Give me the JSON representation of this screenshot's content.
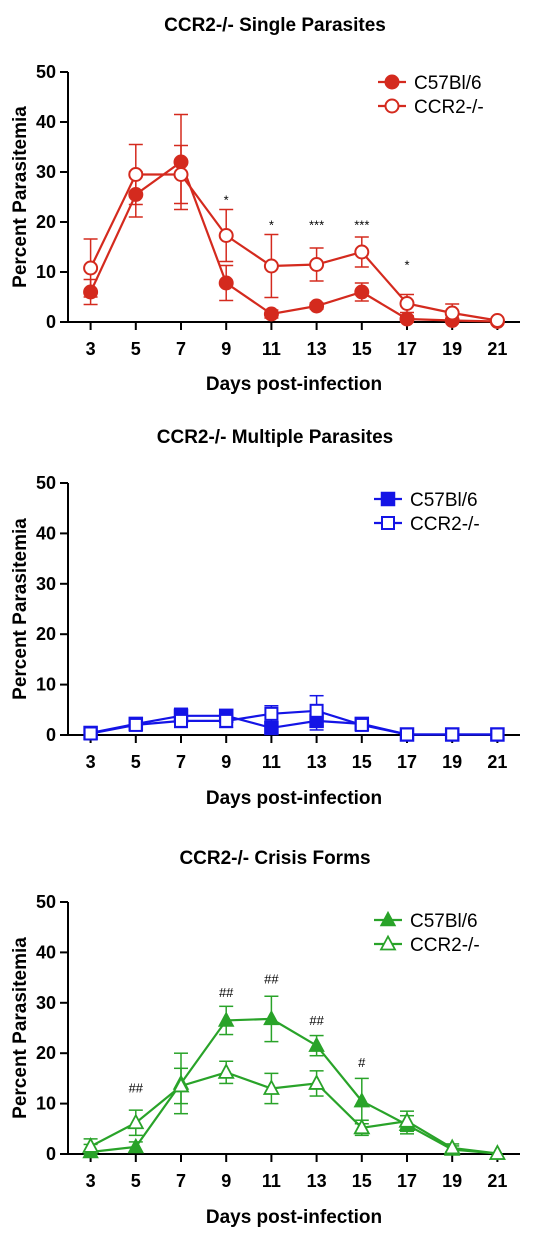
{
  "chart_data": [
    {
      "type": "line",
      "title": "CCR2-/- Single Parasites",
      "xlabel": "Days post-infection",
      "ylabel": "Percent Parasitemia",
      "x": [
        3,
        5,
        7,
        9,
        11,
        13,
        15,
        17,
        19,
        21
      ],
      "xlim": [
        2,
        22
      ],
      "ylim": [
        0,
        50
      ],
      "yticks": [
        0,
        10,
        20,
        30,
        40,
        50
      ],
      "legend_position": "top-right",
      "color": "#d42a1e",
      "series": [
        {
          "name": "C57Bl/6",
          "marker": "filled-circle",
          "values": [
            6,
            25.5,
            32,
            7.8,
            1.6,
            3.2,
            6,
            0.6,
            0.3,
            0.1
          ],
          "errors": [
            2.5,
            4.5,
            9.5,
            3.5,
            0.8,
            0.6,
            1.8,
            0.6,
            0.3,
            0.1
          ]
        },
        {
          "name": "CCR2-/-",
          "marker": "open-circle",
          "values": [
            10.8,
            29.5,
            29.5,
            17.3,
            11.2,
            11.5,
            14,
            3.7,
            1.8,
            0.3
          ],
          "errors": [
            5.8,
            6.0,
            5.8,
            5.2,
            6.3,
            3.3,
            3.0,
            1.8,
            1.8,
            0.3
          ]
        }
      ],
      "annotations": [
        {
          "x": 9,
          "y": 23.5,
          "text": "*"
        },
        {
          "x": 11,
          "y": 18.5,
          "text": "*"
        },
        {
          "x": 13,
          "y": 18.5,
          "text": "***"
        },
        {
          "x": 15,
          "y": 18.5,
          "text": "***"
        },
        {
          "x": 17,
          "y": 10.5,
          "text": "*"
        }
      ]
    },
    {
      "type": "line",
      "title": "CCR2-/- Multiple  Parasites",
      "xlabel": "Days post-infection",
      "ylabel": "Percent Parasitemia",
      "x": [
        3,
        5,
        7,
        9,
        11,
        13,
        15,
        17,
        19,
        21
      ],
      "xlim": [
        2,
        22
      ],
      "ylim": [
        0,
        50
      ],
      "yticks": [
        0,
        10,
        20,
        30,
        40,
        50
      ],
      "legend_position": "top-right",
      "color": "#1414e6",
      "series": [
        {
          "name": "C57Bl/6",
          "marker": "filled-square",
          "values": [
            0.4,
            2.2,
            3.8,
            3.8,
            1.4,
            2.8,
            2.2,
            0.1,
            0.1,
            0.1
          ],
          "errors": [
            0.3,
            0.5,
            1.5,
            1.2,
            0.8,
            1.8,
            0.6,
            0.1,
            0.1,
            0.1
          ]
        },
        {
          "name": "CCR2-/-",
          "marker": "open-square",
          "values": [
            0.3,
            2.0,
            2.8,
            2.8,
            4.2,
            4.8,
            2.0,
            0.1,
            0.1,
            0.1
          ],
          "errors": [
            0.3,
            0.5,
            1.3,
            1.3,
            1.6,
            3.0,
            0.6,
            0.1,
            0.1,
            0.1
          ]
        }
      ],
      "annotations": []
    },
    {
      "type": "line",
      "title": "CCR2-/- Crisis  Forms",
      "xlabel": "Days post-infection",
      "ylabel": "Percent Parasitemia",
      "x": [
        3,
        5,
        7,
        9,
        11,
        13,
        15,
        17,
        19,
        21
      ],
      "xlim": [
        2,
        22
      ],
      "ylim": [
        0,
        50
      ],
      "yticks": [
        0,
        10,
        20,
        30,
        40,
        50
      ],
      "legend_position": "top-right",
      "color": "#29a329",
      "series": [
        {
          "name": "C57Bl/6",
          "marker": "filled-triangle",
          "values": [
            0.4,
            1.4,
            14,
            26.5,
            26.8,
            21.5,
            10.5,
            5.8,
            0.9,
            0.1
          ],
          "errors": [
            1.5,
            1.0,
            6.0,
            2.8,
            4.5,
            2.0,
            4.5,
            1.8,
            0.7,
            0.2
          ]
        },
        {
          "name": "CCR2-/-",
          "marker": "open-triangle",
          "values": [
            1.5,
            6.2,
            13.5,
            16.2,
            13.0,
            14.0,
            5.2,
            6.5,
            1.2,
            0.1
          ],
          "errors": [
            1.5,
            2.5,
            3.5,
            2.2,
            3.0,
            2.5,
            1.5,
            2.0,
            0.8,
            0.2
          ]
        }
      ],
      "annotations": [
        {
          "x": 5,
          "y": 12.2,
          "text": "##"
        },
        {
          "x": 9,
          "y": 31.2,
          "text": "##"
        },
        {
          "x": 11,
          "y": 33.8,
          "text": "##"
        },
        {
          "x": 13,
          "y": 25.6,
          "text": "##"
        },
        {
          "x": 15,
          "y": 17.3,
          "text": "#"
        }
      ]
    }
  ]
}
